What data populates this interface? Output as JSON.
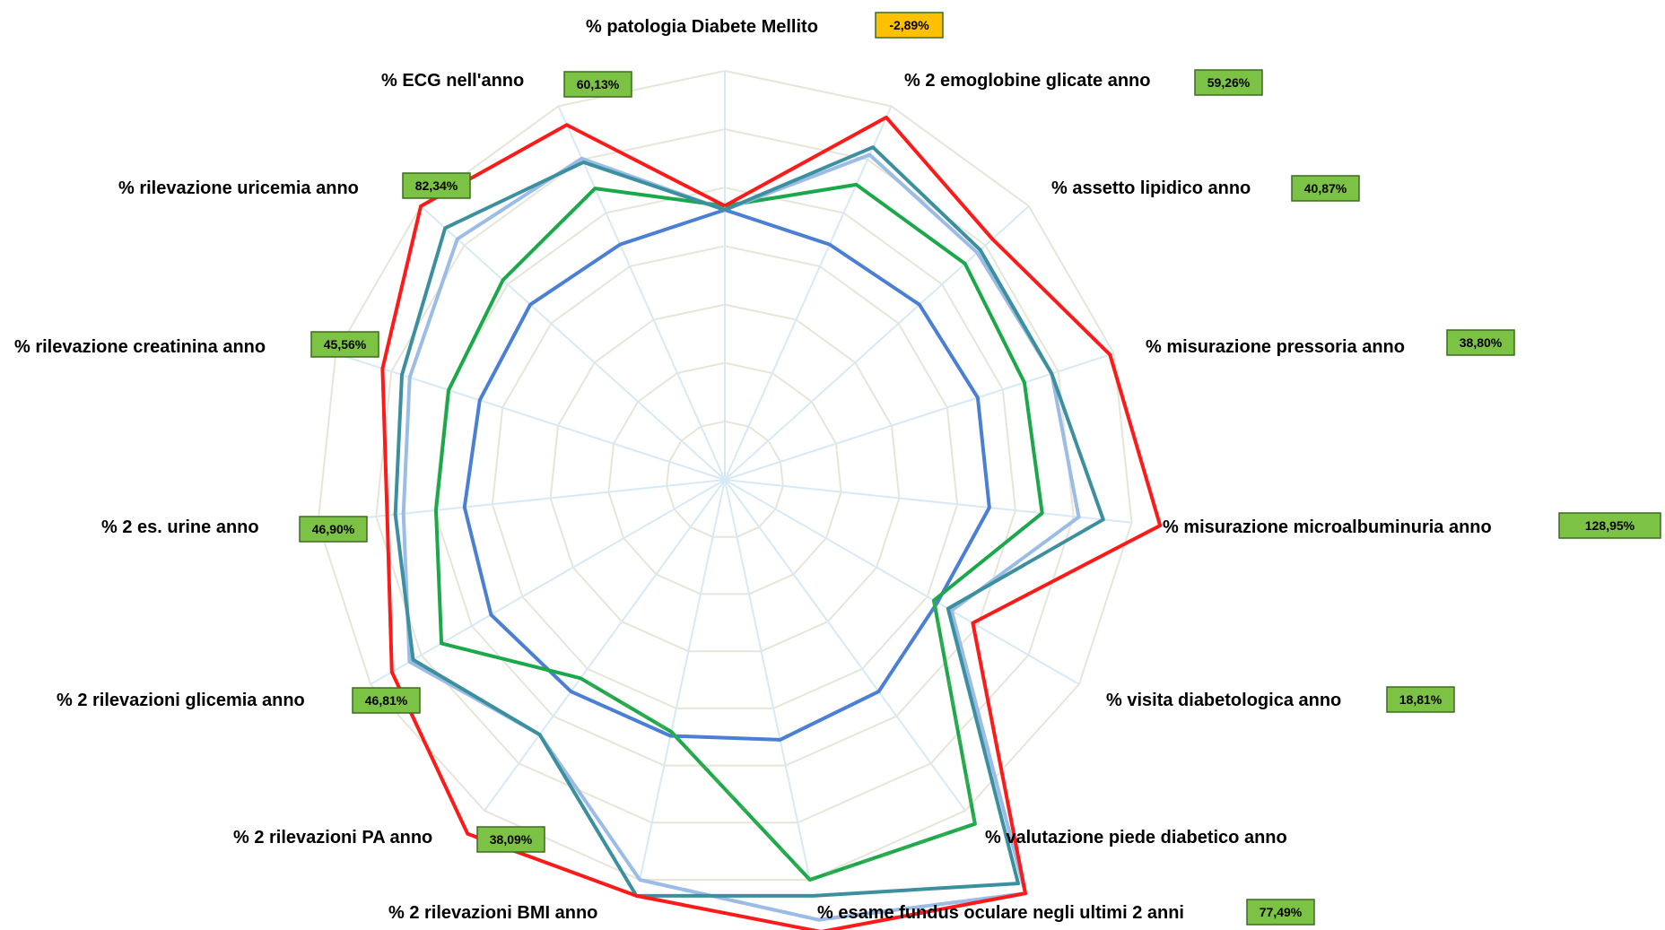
{
  "colors": {
    "grid_ring": "#e6e6d8",
    "grid_spoke": "#d7e9f5",
    "badge_green": "#7cc244",
    "badge_orange": "#ffc000",
    "badge_border": "#3d6b1f"
  },
  "chart_data": {
    "type": "radar",
    "scale_max": 100,
    "ring_count": 7,
    "axes": [
      {
        "label": "%  patologia Diabete Mellito",
        "badge": "-2,89%",
        "badge_color": "orange"
      },
      {
        "label": "%  2 emoglobine glicate anno",
        "badge": "59,26%",
        "badge_color": "green"
      },
      {
        "label": "%  assetto lipidico anno",
        "badge": "40,87%",
        "badge_color": "green"
      },
      {
        "label": "%  misurazione pressoria anno",
        "badge": "38,80%",
        "badge_color": "green"
      },
      {
        "label": "%  misurazione microalbuminuria anno",
        "badge": "128,95%",
        "badge_color": "green"
      },
      {
        "label": "%  visita diabetologica anno",
        "badge": "18,81%",
        "badge_color": "green"
      },
      {
        "label": "%  valutazione piede diabetico anno",
        "badge": "",
        "badge_color": ""
      },
      {
        "label": "%  esame fundus oculare negli ultimi 2 anni",
        "badge": "77,49%",
        "badge_color": "green"
      },
      {
        "label": "%  2 rilevazioni BMI anno",
        "badge": "",
        "badge_color": ""
      },
      {
        "label": "%  2 rilevazioni PA anno",
        "badge": "38,09%",
        "badge_color": "green"
      },
      {
        "label": "%  2 rilevazioni glicemia anno",
        "badge": "46,81%",
        "badge_color": "green"
      },
      {
        "label": "%  2 es. urine anno",
        "badge": "46,90%",
        "badge_color": "green"
      },
      {
        "label": "%  rilevazione creatinina anno",
        "badge": "45,56%",
        "badge_color": "green"
      },
      {
        "label": "%  rilevazione uricemia anno",
        "badge": "82,34%",
        "badge_color": "green"
      },
      {
        "label": "%  ECG nell'anno",
        "badge": "60,13%",
        "badge_color": "green"
      }
    ],
    "series": [
      {
        "color": "#4a7fd4",
        "dash": "",
        "values": [
          66,
          63,
          64,
          65,
          65,
          60,
          64,
          65,
          64,
          64,
          66,
          64,
          63,
          64,
          63
        ]
      },
      {
        "color": "#1aa84a",
        "dash": "",
        "values": [
          67,
          79,
          79,
          77,
          78,
          59,
          104,
          100,
          63,
          60,
          80,
          71,
          71,
          73,
          78
        ]
      },
      {
        "color": "#2dab4f",
        "dash": "12,10",
        "values": [
          null,
          null,
          null,
          null,
          null,
          59,
          104,
          100,
          63,
          60,
          null,
          null,
          null,
          null,
          null
        ]
      },
      {
        "color": "#9bbce6",
        "dash": "",
        "values": [
          66,
          87,
          83,
          84,
          87,
          64,
          125,
          110,
          100,
          77,
          89,
          79,
          81,
          88,
          86
        ]
      },
      {
        "color": "#9bbce6",
        "dash": "10,9",
        "values": [
          null,
          null,
          null,
          null,
          null,
          64,
          125,
          110,
          100,
          null,
          null,
          null,
          null,
          null,
          null
        ]
      },
      {
        "color": "#3c8f9e",
        "dash": "",
        "values": [
          66,
          89,
          84,
          84,
          93,
          63,
          122,
          104,
          104,
          77,
          88,
          81,
          83,
          92,
          85
        ]
      },
      {
        "color": "#ff1a1a",
        "dash": "",
        "values": [
          67,
          97,
          88,
          99,
          107,
          70,
          125,
          113,
          104,
          107,
          94,
          83,
          88,
          100,
          95
        ]
      }
    ]
  }
}
